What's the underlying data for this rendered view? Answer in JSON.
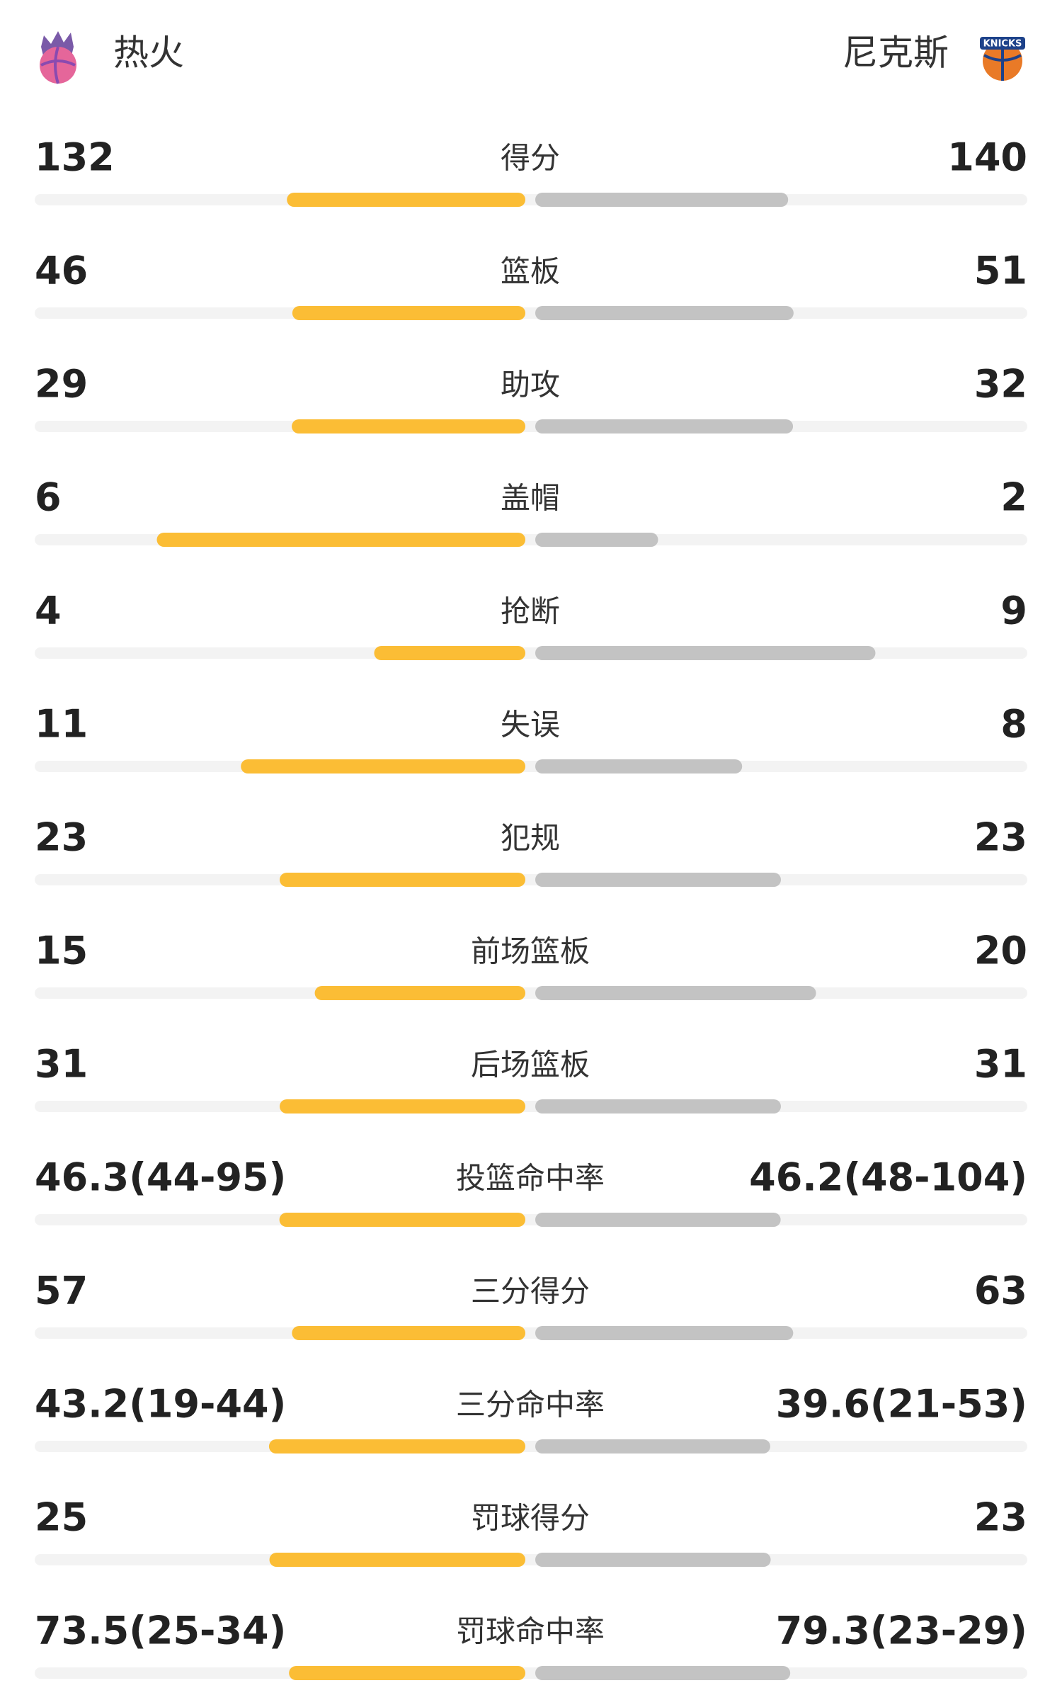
{
  "header": {
    "home_team": "热火",
    "away_team": "尼克斯"
  },
  "rows": [
    {
      "label": "得分",
      "home": "132",
      "away": "140"
    },
    {
      "label": "篮板",
      "home": "46",
      "away": "51"
    },
    {
      "label": "助攻",
      "home": "29",
      "away": "32"
    },
    {
      "label": "盖帽",
      "home": "6",
      "away": "2"
    },
    {
      "label": "抢断",
      "home": "4",
      "away": "9"
    },
    {
      "label": "失误",
      "home": "11",
      "away": "8"
    },
    {
      "label": "犯规",
      "home": "23",
      "away": "23"
    },
    {
      "label": "前场篮板",
      "home": "15",
      "away": "20"
    },
    {
      "label": "后场篮板",
      "home": "31",
      "away": "31"
    },
    {
      "label": "投篮命中率",
      "home": "46.3(44-95)",
      "away": "46.2(48-104)"
    },
    {
      "label": "三分得分",
      "home": "57",
      "away": "63"
    },
    {
      "label": "三分命中率",
      "home": "43.2(19-44)",
      "away": "39.6(21-53)"
    },
    {
      "label": "罚球得分",
      "home": "25",
      "away": "23"
    },
    {
      "label": "罚球命中率",
      "home": "73.5(25-34)",
      "away": "79.3(23-29)"
    }
  ]
}
